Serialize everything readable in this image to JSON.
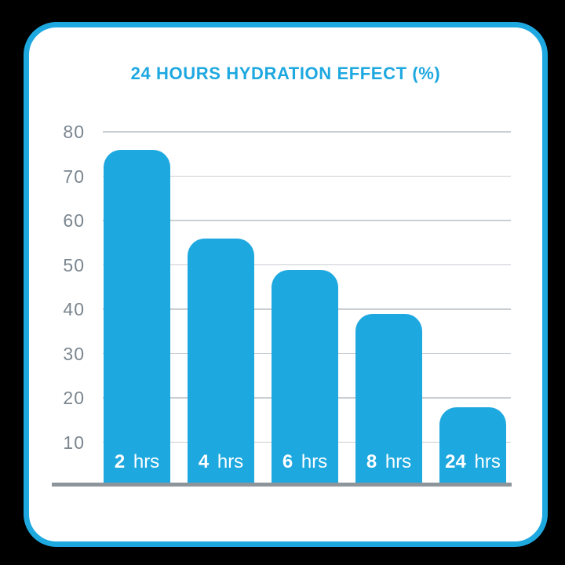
{
  "title": "24 HOURS HYDRATION EFFECT (%)",
  "colors": {
    "accent": "#1EA8E0",
    "grid": "#C9CED3",
    "axis_line": "#8D949A",
    "tick_text": "#7B868F",
    "bar_label_text": "#FFFFFF",
    "card_background": "#FFFFFF",
    "page_background": "#000000"
  },
  "chart_data": {
    "type": "bar",
    "title": "24 HOURS HYDRATION EFFECT (%)",
    "categories": [
      "2 hrs",
      "4 hrs",
      "6 hrs",
      "8 hrs",
      "24 hrs"
    ],
    "values": [
      75,
      55,
      48,
      38,
      17
    ],
    "bars": [
      {
        "label_number": "2",
        "label_unit": "hrs",
        "value": 75
      },
      {
        "label_number": "4",
        "label_unit": "hrs",
        "value": 55
      },
      {
        "label_number": "6",
        "label_unit": "hrs",
        "value": 48
      },
      {
        "label_number": "8",
        "label_unit": "hrs",
        "value": 38
      },
      {
        "label_number": "24",
        "label_unit": "hrs",
        "value": 17
      }
    ],
    "xlabel": "",
    "ylabel": "",
    "ylim": [
      0,
      80
    ],
    "yticks": [
      80,
      70,
      60,
      50,
      40,
      30,
      20,
      10
    ],
    "grid": true,
    "legend": false,
    "bar_labels_position": "inside-bottom",
    "bar_color": "#1EA8E0"
  }
}
